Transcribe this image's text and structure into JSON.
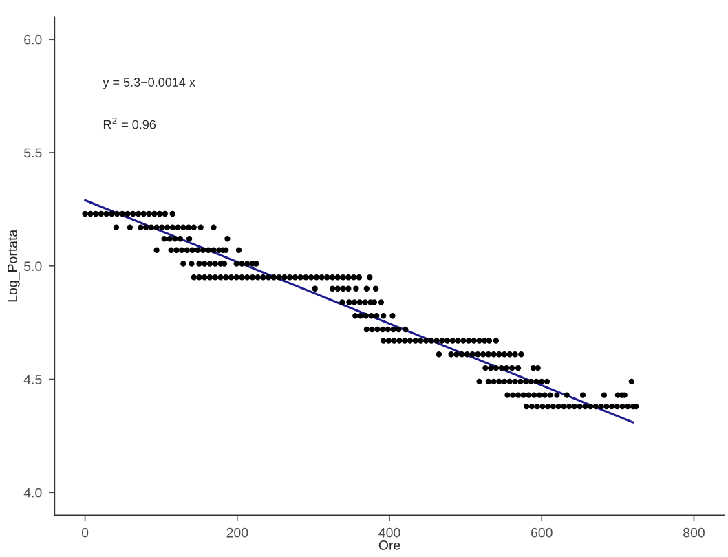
{
  "chart_data": {
    "type": "scatter",
    "xlabel": "Ore",
    "ylabel": "Log_Portata",
    "annotations": [
      "y = 5.3−0.0014 x",
      "R$^{2}$ = 0.96"
    ],
    "xlim": [
      -40,
      840
    ],
    "ylim": [
      3.9,
      6.1
    ],
    "xticks": [
      0,
      200,
      400,
      600,
      800
    ],
    "yticks": [
      {
        "value": 4.0,
        "label": "4.0"
      },
      4.5,
      {
        "value": 5.0,
        "label": "5.0"
      },
      5.5,
      {
        "value": 6.0,
        "label": "6.0"
      }
    ],
    "grid": false,
    "legend": false,
    "marker": "circle",
    "series": [
      {
        "color": "#000000",
        "x": [
          0,
          7,
          14,
          21,
          28,
          35,
          42,
          49,
          56,
          63,
          70,
          77,
          84,
          91,
          98,
          105,
          115
        ],
        "values": [
          5.23,
          5.23,
          5.23,
          5.23,
          5.23,
          5.23,
          5.23,
          5.23,
          5.23,
          5.23,
          5.23,
          5.23,
          5.23,
          5.23,
          5.23,
          5.23,
          5.23
        ]
      },
      {
        "color": "#000000",
        "x": [
          41,
          59,
          73,
          80,
          87,
          94,
          101,
          108,
          115,
          122,
          129,
          136,
          143,
          152,
          169
        ],
        "values": [
          5.17,
          5.17,
          5.17,
          5.17,
          5.17,
          5.17,
          5.17,
          5.17,
          5.17,
          5.17,
          5.17,
          5.17,
          5.17,
          5.17,
          5.17
        ]
      },
      {
        "color": "#000000",
        "x": [
          104,
          111,
          118,
          125,
          137,
          187
        ],
        "values": [
          5.12,
          5.12,
          5.12,
          5.12,
          5.12,
          5.12
        ]
      },
      {
        "color": "#000000",
        "x": [
          94,
          113,
          120,
          127,
          134,
          141,
          148,
          155,
          162,
          169,
          176,
          181,
          185,
          202
        ],
        "values": [
          5.07,
          5.07,
          5.07,
          5.07,
          5.07,
          5.07,
          5.07,
          5.07,
          5.07,
          5.07,
          5.07,
          5.07,
          5.07,
          5.07
        ]
      },
      {
        "color": "#000000",
        "x": [
          129,
          140,
          150,
          157,
          164,
          171,
          178,
          183,
          199,
          206,
          213,
          220,
          225
        ],
        "values": [
          5.01,
          5.01,
          5.01,
          5.01,
          5.01,
          5.01,
          5.01,
          5.01,
          5.01,
          5.01,
          5.01,
          5.01,
          5.01
        ]
      },
      {
        "color": "#000000",
        "x": [
          143,
          150,
          157,
          164,
          171,
          178,
          185,
          192,
          199,
          206,
          213,
          220,
          227,
          234,
          241,
          248,
          255,
          262,
          269,
          276,
          283,
          290,
          297,
          304,
          311,
          318,
          325,
          332,
          339,
          346,
          353,
          360,
          374
        ],
        "values": [
          4.95,
          4.95,
          4.95,
          4.95,
          4.95,
          4.95,
          4.95,
          4.95,
          4.95,
          4.95,
          4.95,
          4.95,
          4.95,
          4.95,
          4.95,
          4.95,
          4.95,
          4.95,
          4.95,
          4.95,
          4.95,
          4.95,
          4.95,
          4.95,
          4.95,
          4.95,
          4.95,
          4.95,
          4.95,
          4.95,
          4.95,
          4.95,
          4.95
        ]
      },
      {
        "color": "#000000",
        "x": [
          302,
          325,
          332,
          339,
          346,
          356,
          370,
          382
        ],
        "values": [
          4.9,
          4.9,
          4.9,
          4.9,
          4.9,
          4.9,
          4.9,
          4.9
        ]
      },
      {
        "color": "#000000",
        "x": [
          338,
          347,
          354,
          361,
          368,
          375,
          380,
          389
        ],
        "values": [
          4.84,
          4.84,
          4.84,
          4.84,
          4.84,
          4.84,
          4.84,
          4.84
        ]
      },
      {
        "color": "#000000",
        "x": [
          355,
          362,
          369,
          376,
          383,
          392,
          404
        ],
        "values": [
          4.78,
          4.78,
          4.78,
          4.78,
          4.78,
          4.78,
          4.78
        ]
      },
      {
        "color": "#000000",
        "x": [
          370,
          377,
          384,
          391,
          398,
          405,
          412,
          421
        ],
        "values": [
          4.72,
          4.72,
          4.72,
          4.72,
          4.72,
          4.72,
          4.72,
          4.72
        ]
      },
      {
        "color": "#000000",
        "x": [
          392,
          399,
          406,
          413,
          420,
          427,
          434,
          441,
          448,
          455,
          462,
          469,
          476,
          483,
          490,
          497,
          504,
          511,
          518,
          525,
          531,
          540
        ],
        "values": [
          4.67,
          4.67,
          4.67,
          4.67,
          4.67,
          4.67,
          4.67,
          4.67,
          4.67,
          4.67,
          4.67,
          4.67,
          4.67,
          4.67,
          4.67,
          4.67,
          4.67,
          4.67,
          4.67,
          4.67,
          4.67,
          4.67
        ]
      },
      {
        "color": "#000000",
        "x": [
          465,
          481,
          488,
          495,
          502,
          509,
          516,
          523,
          530,
          537,
          544,
          551,
          558,
          565,
          573
        ],
        "values": [
          4.61,
          4.61,
          4.61,
          4.61,
          4.61,
          4.61,
          4.61,
          4.61,
          4.61,
          4.61,
          4.61,
          4.61,
          4.61,
          4.61,
          4.61
        ]
      },
      {
        "color": "#000000",
        "x": [
          526,
          533,
          540,
          547,
          554,
          561,
          569,
          589,
          595
        ],
        "values": [
          4.55,
          4.55,
          4.55,
          4.55,
          4.55,
          4.55,
          4.55,
          4.55,
          4.55
        ]
      },
      {
        "color": "#000000",
        "x": [
          518,
          530,
          537,
          544,
          551,
          558,
          565,
          572,
          579,
          586,
          593,
          600,
          607,
          718
        ],
        "values": [
          4.49,
          4.49,
          4.49,
          4.49,
          4.49,
          4.49,
          4.49,
          4.49,
          4.49,
          4.49,
          4.49,
          4.49,
          4.49,
          4.49
        ]
      },
      {
        "color": "#000000",
        "x": [
          555,
          562,
          569,
          576,
          583,
          590,
          597,
          604,
          611,
          620,
          633,
          654,
          682,
          700,
          705,
          709
        ],
        "values": [
          4.43,
          4.43,
          4.43,
          4.43,
          4.43,
          4.43,
          4.43,
          4.43,
          4.43,
          4.43,
          4.43,
          4.43,
          4.43,
          4.43,
          4.43,
          4.43
        ]
      },
      {
        "color": "#000000",
        "x": [
          580,
          587,
          594,
          601,
          608,
          615,
          622,
          629,
          636,
          643,
          650,
          657,
          664,
          671,
          678,
          685,
          692,
          699,
          706,
          713,
          720,
          724
        ],
        "values": [
          4.38,
          4.38,
          4.38,
          4.38,
          4.38,
          4.38,
          4.38,
          4.38,
          4.38,
          4.38,
          4.38,
          4.38,
          4.38,
          4.38,
          4.38,
          4.38,
          4.38,
          4.38,
          4.38,
          4.38,
          4.38,
          4.38
        ]
      },
      {
        "type": "line",
        "color": "#1c1c8c",
        "marker": "none",
        "line_style": "solid",
        "x": [
          0,
          720
        ],
        "values": [
          5.29,
          4.31
        ]
      }
    ]
  }
}
